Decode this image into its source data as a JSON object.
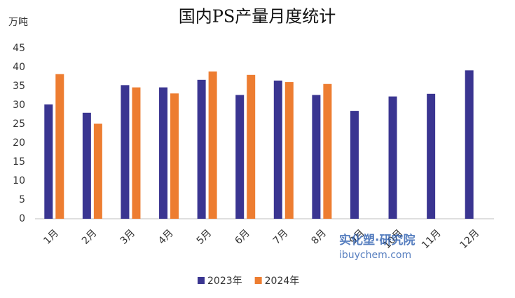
{
  "chart_data": {
    "type": "bar",
    "title": "国内PS产量月度统计",
    "y_label": "万吨",
    "categories": [
      "1月",
      "2月",
      "3月",
      "4月",
      "5月",
      "6月",
      "7月",
      "8月",
      "9月",
      "10月",
      "11月",
      "12月"
    ],
    "series": [
      {
        "name": "2023年",
        "color": "#3a3591",
        "values": [
          30.2,
          28,
          35.3,
          34.7,
          36.7,
          32.7,
          36.5,
          32.7,
          28.5,
          32.3,
          33,
          39.2
        ]
      },
      {
        "name": "2024年",
        "color": "#ed7d31",
        "values": [
          38.2,
          25.1,
          34.7,
          33.1,
          38.9,
          38,
          36.1,
          35.6,
          null,
          null,
          null,
          null
        ]
      }
    ],
    "ylim": [
      0,
      45
    ],
    "yticks": [
      0,
      5,
      10,
      15,
      20,
      25,
      30,
      35,
      40,
      45
    ],
    "grid": false,
    "legend": "bottom",
    "watermark": {
      "brand": "实化塑·研究院",
      "site": "ibuychem.com"
    }
  }
}
